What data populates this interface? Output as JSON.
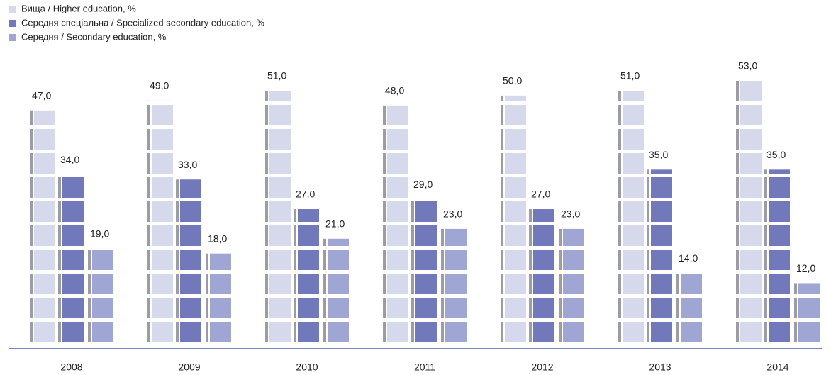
{
  "chart_data": {
    "type": "bar",
    "categories": [
      "2008",
      "2009",
      "2010",
      "2011",
      "2012",
      "2013",
      "2014"
    ],
    "series": [
      {
        "name": "Вища / Higher education, %",
        "color": "#d6d9ec",
        "values": [
          47,
          49,
          51,
          48,
          50,
          51,
          53
        ],
        "value_labels": [
          "47,0",
          "49,0",
          "51,0",
          "48,0",
          "50,0",
          "51,0",
          "53,0"
        ]
      },
      {
        "name": "Середня спеціальна / Specialized secondary education, %",
        "color": "#7179bb",
        "values": [
          34,
          33,
          27,
          29,
          27,
          35,
          35
        ],
        "value_labels": [
          "34,0",
          "33,0",
          "27,0",
          "29,0",
          "27,0",
          "35,0",
          "35,0"
        ]
      },
      {
        "name": "Середня / Secondary education, %",
        "color": "#9fa6d3",
        "values": [
          19,
          18,
          21,
          23,
          23,
          14,
          12
        ],
        "value_labels": [
          "19,0",
          "18,0",
          "21,0",
          "23,0",
          "23,0",
          "14,0",
          "12,0"
        ]
      }
    ]
  }
}
